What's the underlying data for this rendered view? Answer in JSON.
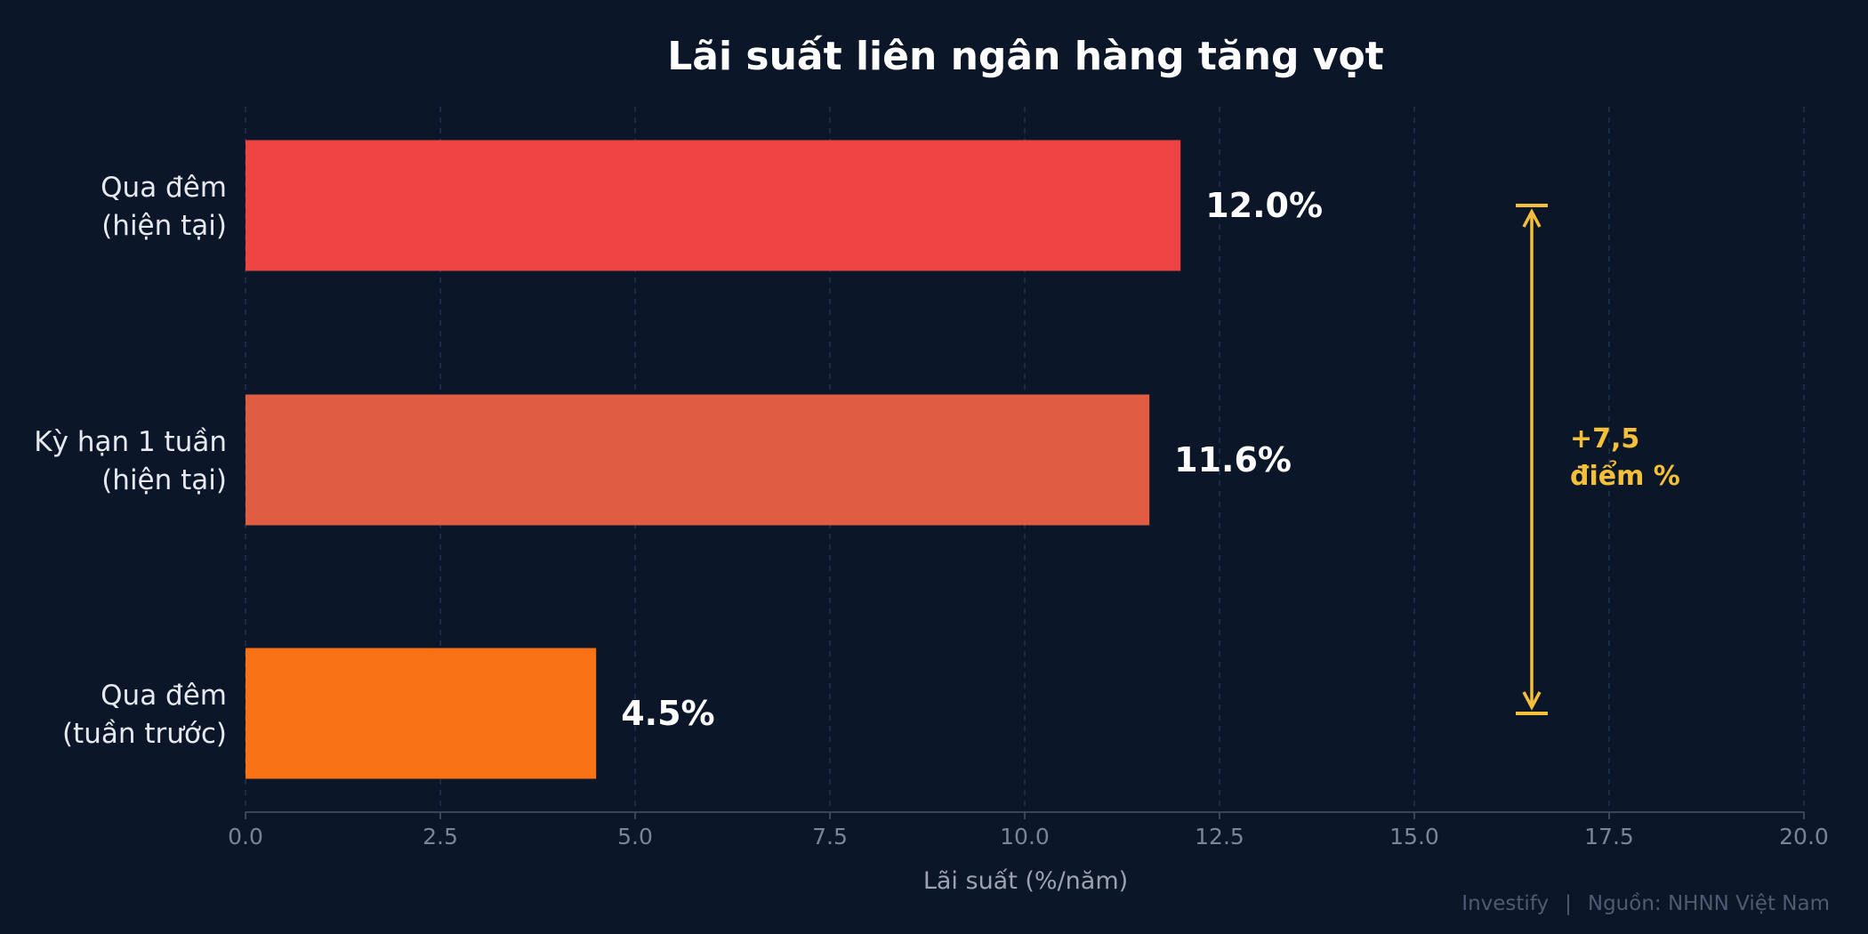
{
  "chart_data": {
    "type": "bar",
    "orientation": "horizontal",
    "title": "Lãi suất liên ngân hàng tăng vọt",
    "xlabel": "Lãi suất (%/năm)",
    "ylabel": "",
    "xlim": [
      0,
      20
    ],
    "xticks": [
      "0.0",
      "2.5",
      "5.0",
      "7.5",
      "10.0",
      "12.5",
      "15.0",
      "17.5",
      "20.0"
    ],
    "grid": "vertical-dashed",
    "categories": [
      [
        "Qua đêm",
        "(hiện tại)"
      ],
      [
        "Kỳ hạn 1 tuần",
        "(hiện tại)"
      ],
      [
        "Qua đêm",
        "(tuần trước)"
      ]
    ],
    "values": [
      12.0,
      11.6,
      4.5
    ],
    "data_labels": [
      "12.0%",
      "11.6%",
      "4.5%"
    ],
    "colors": [
      "#ef4444",
      "#e05d44",
      "#f97316"
    ],
    "annotation": {
      "lines": [
        "+7,5",
        "điểm %"
      ],
      "from_value": 12.0,
      "to_value": 4.5,
      "color": "#f5bf3a"
    }
  },
  "footer": {
    "brand": "Investify",
    "separator": "|",
    "source": "Nguồn: NHNN Việt Nam"
  },
  "colors": {
    "background": "#0b1628",
    "grid": "#1e3556",
    "axis": "#3a4658"
  }
}
